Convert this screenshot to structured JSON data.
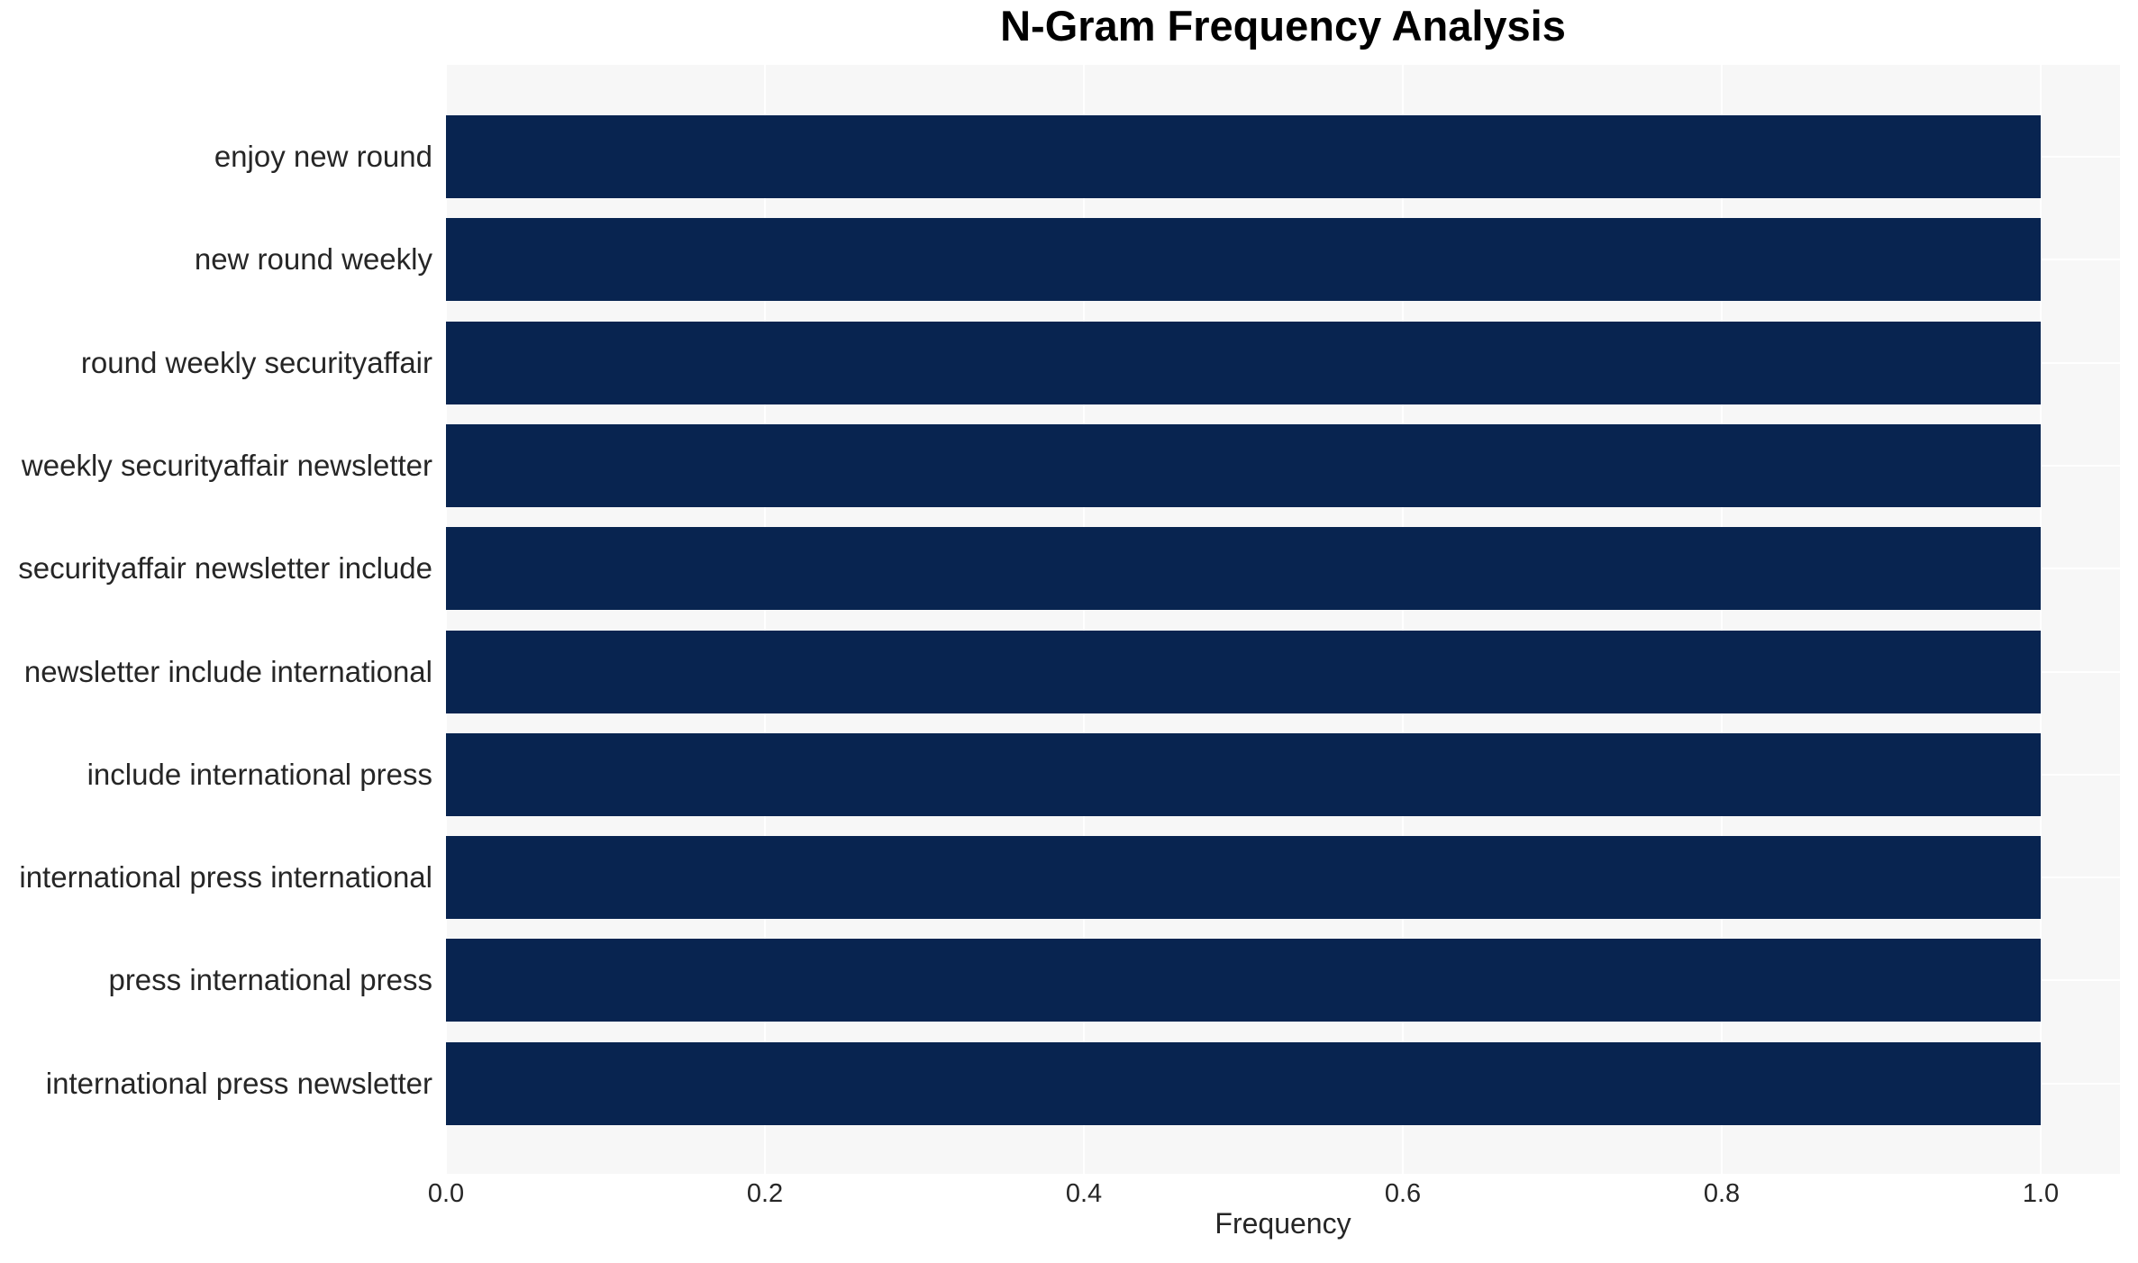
{
  "chart_data": {
    "type": "bar",
    "orientation": "horizontal",
    "title": "N-Gram Frequency Analysis",
    "xlabel": "Frequency",
    "ylabel": "",
    "categories": [
      "enjoy new round",
      "new round weekly",
      "round weekly securityaffair",
      "weekly securityaffair newsletter",
      "securityaffair newsletter include",
      "newsletter include international",
      "include international press",
      "international press international",
      "press international press",
      "international press newsletter"
    ],
    "values": [
      1.0,
      1.0,
      1.0,
      1.0,
      1.0,
      1.0,
      1.0,
      1.0,
      1.0,
      1.0
    ],
    "xlim": [
      0.0,
      1.05
    ],
    "xticks": {
      "values": [
        0.0,
        0.2,
        0.4,
        0.6,
        0.8,
        1.0
      ],
      "labels": [
        "0.0",
        "0.2",
        "0.4",
        "0.6",
        "0.8",
        "1.0"
      ]
    },
    "grid": {
      "visible": true,
      "color": "#ffffff"
    },
    "legend": "none",
    "colors": {
      "bar": "#082450",
      "plot_background": "#f7f7f7",
      "figure_background": "#ffffff",
      "gridline": "#ffffff",
      "tick_text": "#262626",
      "title_text": "#000000"
    }
  }
}
